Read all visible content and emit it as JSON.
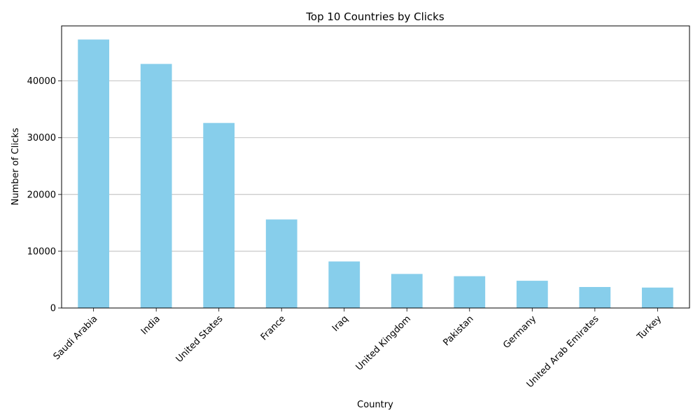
{
  "chart_data": {
    "type": "bar",
    "title": "Top 10 Countries by Clicks",
    "xlabel": "Country",
    "ylabel": "Number of Clicks",
    "categories": [
      "Saudi Arabia",
      "India",
      "United States",
      "France",
      "Iraq",
      "United Kingdom",
      "Pakistan",
      "Germany",
      "United Arab Emirates",
      "Turkey"
    ],
    "values": [
      47300,
      43000,
      32600,
      15600,
      8200,
      6000,
      5600,
      4800,
      3700,
      3600
    ],
    "ylim": [
      0,
      49700
    ],
    "yticks": [
      0,
      10000,
      20000,
      30000,
      40000
    ],
    "bar_color": "#87ceeb",
    "grid": "y",
    "legend": "none"
  }
}
